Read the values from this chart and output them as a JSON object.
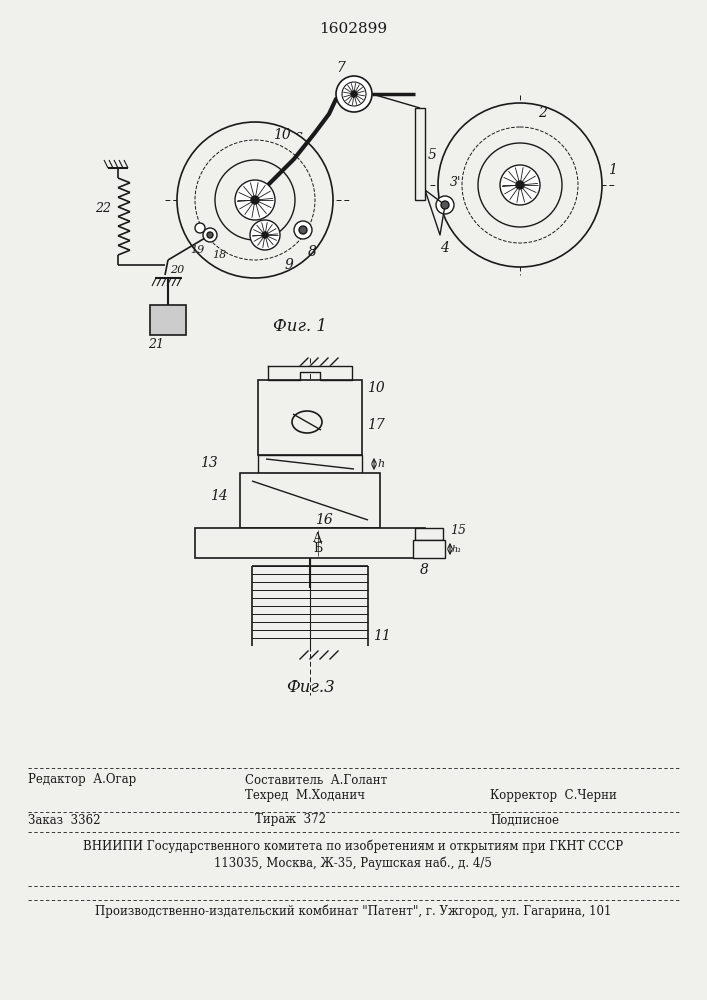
{
  "patent_number": "1602899",
  "fig1_label": "Фиг. 1",
  "fig3_label": "Фиг.3",
  "footer": {
    "editor": "Редактор  А.Огар",
    "compositor_label": "Составитель  А.Голант",
    "techred_label": "Техред  М.Ходанич",
    "corrector_label": "Корректор  С.Черни",
    "order": "Заказ  3362",
    "tirazh": "Тираж  372",
    "podpisnoe": "Подписное",
    "vnipi_line": "ВНИИПИ Государственного комитета по изобретениям и открытиям при ГКНТ СССР",
    "address_line": "113035, Москва, Ж-35, Раушская наб., д. 4/5",
    "print_line": "Производственно-издательский комбинат \"Патент\", г. Ужгород, ул. Гагарина, 101"
  },
  "bg_color": "#f0f0ec",
  "line_color": "#1a1a1a",
  "line_width": 1.0
}
